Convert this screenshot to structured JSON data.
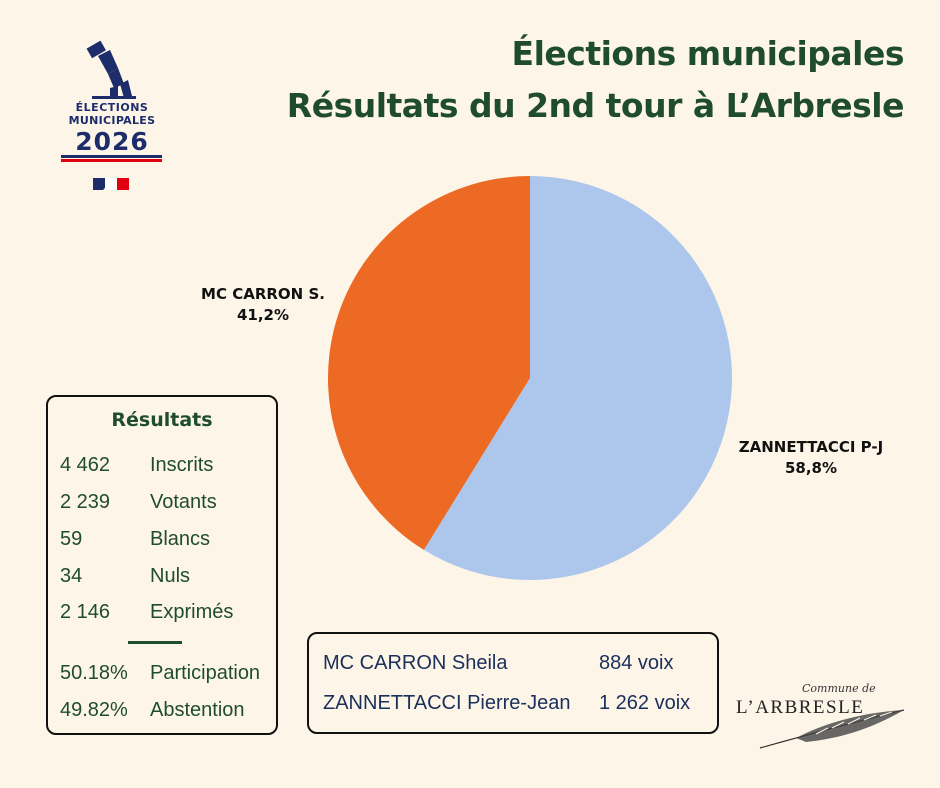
{
  "header": {
    "title_line1": "Élections municipales",
    "title_line2": "Résultats du 2nd tour à L’Arbresle"
  },
  "logo": {
    "line1": "ÉLECTIONS",
    "line2": "MUNICIPALES",
    "year": "2026",
    "icon": "ballot-box-voter-icon",
    "flag_icon": "french-flag-icon",
    "colors": {
      "navy": "#1d2c6b",
      "red": "#e1000f"
    }
  },
  "chart_data": {
    "type": "pie",
    "slices": [
      {
        "name": "ZANNETTACCI P-J",
        "percent": "58,8%",
        "value": 58.8,
        "color": "#adc6ec"
      },
      {
        "name": "MC CARRON S.",
        "percent": "41,2%",
        "value": 41.2,
        "color": "#ec6a23"
      }
    ],
    "start_angle_deg": 0,
    "direction": "clockwise"
  },
  "results": {
    "title": "Résultats",
    "rows": [
      {
        "value": "4 462",
        "label": "Inscrits"
      },
      {
        "value": "2 239",
        "label": "Votants"
      },
      {
        "value": "59",
        "label": "Blancs"
      },
      {
        "value": "34",
        "label": "Nuls"
      },
      {
        "value": "2 146",
        "label": "Exprimés"
      }
    ],
    "rates": [
      {
        "value": "50.18%",
        "label": "Participation"
      },
      {
        "value": "49.82%",
        "label": "Abstention"
      }
    ]
  },
  "votes": [
    {
      "name": "MC CARRON Sheila",
      "count": "884 voix"
    },
    {
      "name": "ZANNETTACCI Pierre-Jean",
      "count": "1 262 voix"
    }
  ],
  "commune": {
    "top": "Commune de",
    "name": "L’ARBRESLE",
    "icon": "feather-icon"
  },
  "colors": {
    "background": "#fdf6e8",
    "title_green": "#1f4d2b",
    "vote_text": "#1a2f5a"
  }
}
